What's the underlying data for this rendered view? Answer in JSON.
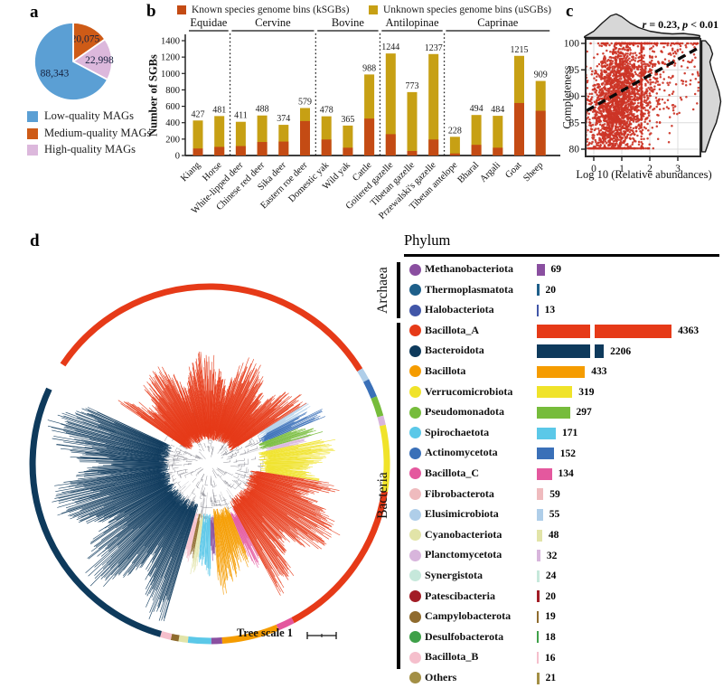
{
  "panel_labels": {
    "a": "a",
    "b": "b",
    "c": "c",
    "d": "d"
  },
  "panel_a": {
    "legend": [
      {
        "label": "Low-quality MAGs",
        "color": "#5B9FD4"
      },
      {
        "label": "Medium-quality MAGs",
        "color": "#CE5B17"
      },
      {
        "label": "High-quality MAGs",
        "color": "#DCB8DC"
      }
    ]
  },
  "panel_b": {
    "legend_known": "Known species genome bins (kSGBs)",
    "legend_unknown": "Unknown species genome bins (uSGBs)",
    "ylabel": "Number of SGBs"
  },
  "panel_c": {
    "ylabel": "Completeness",
    "xlabel": "Log 10 (Relative abundances)",
    "annotation": {
      "var1": "r",
      "mid": " = 0.23, ",
      "var2": "p",
      "end": " < 0.01"
    }
  },
  "panel_d": {
    "legend_title": "Phylum",
    "archaea_label": "Archaea",
    "bacteria_label": "Bacteria",
    "tree_scale_label": "Tree scale 1"
  },
  "chart_data": [
    {
      "id": "a",
      "type": "pie",
      "title": "MAG quality distribution",
      "slices": [
        {
          "label": "Medium-quality MAGs",
          "value": 20075,
          "display": "20,075",
          "color": "#CE5B17"
        },
        {
          "label": "High-quality MAGs",
          "value": 22998,
          "display": "22,998",
          "color": "#DCB8DC"
        },
        {
          "label": "Low-quality MAGs",
          "value": 88343,
          "display": "88,343",
          "color": "#5B9FD4"
        }
      ],
      "start_angle_deg": 0,
      "clockwise": true
    },
    {
      "id": "b",
      "type": "stacked-bar",
      "ylabel": "Number of SGBs",
      "ylim": [
        0,
        1400
      ],
      "yticks": [
        0,
        200,
        400,
        600,
        800,
        1000,
        1200,
        1400
      ],
      "categories": [
        "Kiang",
        "Horse",
        "White-lipped deer",
        "Chinese red deer",
        "Sika deer",
        "Eastern roe deer",
        "Domestic yak",
        "Wild yak",
        "Cattle",
        "Goitered gazelle",
        "Tibetan gazelle",
        "Przewalski's gazelle",
        "Tibetan antelope",
        "Bharal",
        "Argali",
        "Goat",
        "Sheep"
      ],
      "series": [
        {
          "name": "Known species genome bins (kSGBs)",
          "color": "#C44B14",
          "values": [
            85,
            105,
            115,
            165,
            170,
            420,
            195,
            95,
            450,
            260,
            55,
            195,
            25,
            130,
            95,
            640,
            545
          ]
        },
        {
          "name": "Unknown species genome bins (uSGBs)",
          "color": "#C7A014",
          "values": [
            342,
            376,
            296,
            323,
            204,
            159,
            283,
            270,
            538,
            984,
            718,
            1042,
            203,
            364,
            389,
            575,
            364
          ]
        }
      ],
      "totals": [
        427,
        481,
        411,
        488,
        374,
        579,
        478,
        365,
        988,
        1244,
        773,
        1237,
        228,
        494,
        484,
        1215,
        909
      ],
      "groups": [
        {
          "label": "Equidae",
          "from": 0,
          "to": 1
        },
        {
          "label": "Cervine",
          "from": 2,
          "to": 5
        },
        {
          "label": "Bovine",
          "from": 6,
          "to": 8
        },
        {
          "label": "Antilopinae",
          "from": 9,
          "to": 11
        },
        {
          "label": "Caprinae",
          "from": 12,
          "to": 16
        }
      ]
    },
    {
      "id": "c",
      "type": "scatter",
      "annotation": "r = 0.23, p < 0.01",
      "xlabel": "Log 10 (Relative abundances)",
      "ylabel": "Completeness",
      "xticks": [
        0,
        1,
        2,
        3
      ],
      "yticks": [
        80,
        85,
        90,
        95,
        100
      ],
      "xlim": [
        -0.29,
        3.81
      ],
      "ylim": [
        78.6,
        100.85
      ],
      "point_color": "#CC3426",
      "n_points": 2600,
      "trend": {
        "x1": -0.25,
        "y1": 87.3,
        "x2": 3.68,
        "y2": 99.0
      },
      "x_density_peak": 0.8,
      "grid": true,
      "top_density": [
        [
          -0.33,
          1
        ],
        [
          0,
          7
        ],
        [
          0.3,
          16
        ],
        [
          0.6,
          24
        ],
        [
          0.8,
          26
        ],
        [
          1.0,
          23
        ],
        [
          1.3,
          16
        ],
        [
          1.6,
          11
        ],
        [
          2.0,
          7
        ],
        [
          2.4,
          5
        ],
        [
          2.8,
          4
        ],
        [
          3.2,
          4.5
        ],
        [
          3.6,
          3
        ],
        [
          3.78,
          2
        ]
      ],
      "right_density": [
        [
          100.5,
          4
        ],
        [
          99.5,
          9
        ],
        [
          98,
          12
        ],
        [
          96.5,
          9
        ],
        [
          95,
          11
        ],
        [
          93,
          15
        ],
        [
          91,
          19
        ],
        [
          89,
          21
        ],
        [
          87,
          19
        ],
        [
          85,
          16
        ],
        [
          83,
          11
        ],
        [
          81,
          7
        ],
        [
          79.5,
          4
        ]
      ]
    },
    {
      "id": "d",
      "type": "tree+legend",
      "tree_scale_label": "Tree scale 1",
      "phyla": [
        {
          "domain": "Archaea",
          "name": "Methanobacteriota",
          "count": 69,
          "color": "#8A4FA0"
        },
        {
          "domain": "Archaea",
          "name": "Thermoplasmatota",
          "count": 20,
          "color": "#1E5F8A"
        },
        {
          "domain": "Archaea",
          "name": "Halobacteriota",
          "count": 13,
          "color": "#4156A8"
        },
        {
          "domain": "Bacteria",
          "name": "Bacillota_A",
          "count": 4363,
          "color": "#E63A18"
        },
        {
          "domain": "Bacteria",
          "name": "Bacteroidota",
          "count": 2206,
          "color": "#0E3A5C"
        },
        {
          "domain": "Bacteria",
          "name": "Bacillota",
          "count": 433,
          "color": "#F59C00"
        },
        {
          "domain": "Bacteria",
          "name": "Verrucomicrobiota",
          "count": 319,
          "color": "#F0E32A"
        },
        {
          "domain": "Bacteria",
          "name": "Pseudomonadota",
          "count": 297,
          "color": "#76BC3B"
        },
        {
          "domain": "Bacteria",
          "name": "Spirochaetota",
          "count": 171,
          "color": "#5BC8E8"
        },
        {
          "domain": "Bacteria",
          "name": "Actinomycetota",
          "count": 152,
          "color": "#3A70B8"
        },
        {
          "domain": "Bacteria",
          "name": "Bacillota_C",
          "count": 134,
          "color": "#E4589E"
        },
        {
          "domain": "Bacteria",
          "name": "Fibrobacterota",
          "count": 59,
          "color": "#EFBBBE"
        },
        {
          "domain": "Bacteria",
          "name": "Elusimicrobiota",
          "count": 55,
          "color": "#AFCEE9"
        },
        {
          "domain": "Bacteria",
          "name": "Cyanobacteriota",
          "count": 48,
          "color": "#E2E4A8"
        },
        {
          "domain": "Bacteria",
          "name": "Planctomycetota",
          "count": 32,
          "color": "#D8B5DC"
        },
        {
          "domain": "Bacteria",
          "name": "Synergistota",
          "count": 24,
          "color": "#C6E8DB"
        },
        {
          "domain": "Bacteria",
          "name": "Patescibacteria",
          "count": 20,
          "color": "#A21D26"
        },
        {
          "domain": "Bacteria",
          "name": "Campylobacterota",
          "count": 19,
          "color": "#8F6B2E"
        },
        {
          "domain": "Bacteria",
          "name": "Desulfobacterota",
          "count": 18,
          "color": "#3FA049"
        },
        {
          "domain": "Bacteria",
          "name": "Bacillota_B",
          "count": 16,
          "color": "#F5BFCC"
        },
        {
          "domain": "Bacteria",
          "name": "Others",
          "count": 21,
          "color": "#A38F45"
        }
      ],
      "ring_segments": [
        {
          "from": 304,
          "to": 418,
          "color": "#E63A18",
          "ri": 26,
          "ro": 120
        },
        {
          "from": 58,
          "to": 62,
          "color": "#AFCEE9",
          "ri": 62,
          "ro": 120
        },
        {
          "from": 62,
          "to": 68,
          "color": "#3A70B8",
          "ri": 60,
          "ro": 135
        },
        {
          "from": 68,
          "to": 74.5,
          "color": "#76BC3B",
          "ri": 58,
          "ro": 140
        },
        {
          "from": 74.5,
          "to": 77.5,
          "color": "#D8B5DC",
          "ri": 62,
          "ro": 118
        },
        {
          "from": 77.5,
          "to": 99,
          "color": "#F0E32A",
          "ri": 55,
          "ro": 135
        },
        {
          "from": 99,
          "to": 152,
          "color": "#E63A18",
          "ri": 45,
          "ro": 158
        },
        {
          "from": 152,
          "to": 157.5,
          "color": "#E4589E",
          "ri": 55,
          "ro": 130
        },
        {
          "from": 157.5,
          "to": 176,
          "color": "#F59C00",
          "ri": 50,
          "ro": 140
        },
        {
          "from": 176,
          "to": 179.5,
          "color": "#8A4FA0",
          "ri": 55,
          "ro": 115
        },
        {
          "from": 179.5,
          "to": 187,
          "color": "#5BC8E8",
          "ri": 55,
          "ro": 130
        },
        {
          "from": 187,
          "to": 190,
          "color": "#E2E4A8",
          "ri": 55,
          "ro": 115
        },
        {
          "from": 190,
          "to": 192.5,
          "color": "#8F6B2E",
          "ri": 55,
          "ro": 110
        },
        {
          "from": 192.5,
          "to": 196,
          "color": "#F5BFCC",
          "ri": 55,
          "ro": 115
        },
        {
          "from": 196,
          "to": 295,
          "color": "#0E3A5C",
          "ri": 45,
          "ro": 180
        }
      ]
    }
  ]
}
